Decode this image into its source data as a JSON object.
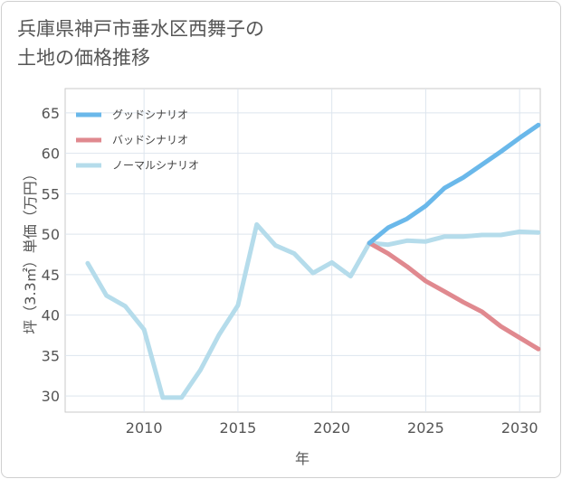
{
  "title": "兵庫県神戸市垂水区西舞子の\n土地の価格推移",
  "chart_data": {
    "type": "line",
    "title": "兵庫県神戸市垂水区西舞子の土地の価格推移",
    "xlabel": "年",
    "ylabel": "坪（3.3㎡）単価（万円）",
    "xlim": [
      2005.8,
      2031.1
    ],
    "ylim": [
      28,
      68
    ],
    "xticks": [
      2010,
      2015,
      2020,
      2025,
      2030
    ],
    "yticks": [
      30,
      35,
      40,
      45,
      50,
      55,
      60,
      65
    ],
    "grid": true,
    "legend_position": "top-left",
    "series": [
      {
        "name": "グッドシナリオ",
        "color": "#6ab8ea",
        "x": [
          2022,
          2023,
          2024,
          2025,
          2026,
          2027,
          2028,
          2029,
          2030,
          2031
        ],
        "y": [
          48.9,
          50.8,
          51.9,
          53.5,
          55.7,
          57.0,
          58.6,
          60.2,
          61.9,
          63.5
        ]
      },
      {
        "name": "バッドシナリオ",
        "color": "#e0898f",
        "x": [
          2022,
          2023,
          2024,
          2025,
          2026,
          2027,
          2028,
          2029,
          2030,
          2031
        ],
        "y": [
          48.9,
          47.6,
          46.0,
          44.2,
          42.9,
          41.6,
          40.4,
          38.6,
          37.2,
          35.8
        ]
      },
      {
        "name": "ノーマルシナリオ",
        "color": "#b5dceb",
        "x": [
          2007,
          2008,
          2009,
          2010,
          2011,
          2012,
          2013,
          2014,
          2015,
          2016,
          2017,
          2018,
          2019,
          2020,
          2021,
          2022,
          2023,
          2024,
          2025,
          2026,
          2027,
          2028,
          2029,
          2030,
          2031
        ],
        "y": [
          46.4,
          42.4,
          41.1,
          38.2,
          29.8,
          29.8,
          33.2,
          37.6,
          41.2,
          51.2,
          48.6,
          47.6,
          45.2,
          46.5,
          44.8,
          48.9,
          48.7,
          49.2,
          49.1,
          49.7,
          49.7,
          49.9,
          49.9,
          50.3,
          50.2
        ]
      }
    ]
  }
}
